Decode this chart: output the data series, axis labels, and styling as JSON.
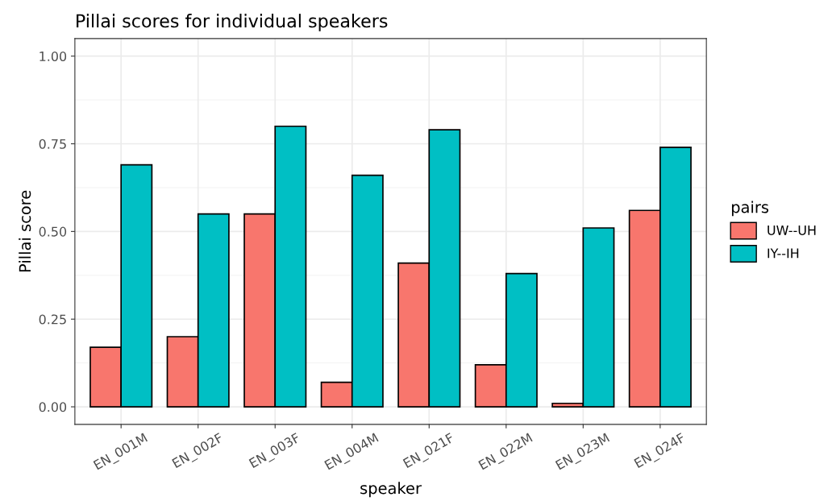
{
  "chart_data": {
    "type": "bar",
    "title": "Pillai scores for individual speakers",
    "xlabel": "speaker",
    "ylabel": "Pillai score",
    "legend_title": "pairs",
    "categories": [
      "EN_001M",
      "EN_002F",
      "EN_003F",
      "EN_004M",
      "EN_021F",
      "EN_022M",
      "EN_023M",
      "EN_024F"
    ],
    "series": [
      {
        "name": "UW--UH",
        "color": "#f8766d",
        "values": [
          0.17,
          0.2,
          0.55,
          0.07,
          0.41,
          0.12,
          0.01,
          0.56
        ]
      },
      {
        "name": "IY--IH",
        "color": "#00bfc4",
        "values": [
          0.69,
          0.55,
          0.8,
          0.66,
          0.79,
          0.38,
          0.51,
          0.74
        ]
      }
    ],
    "ylim": [
      -0.05,
      1.05
    ],
    "yticks": [
      {
        "value": 0,
        "label": "0.00"
      },
      {
        "value": 0.25,
        "label": "0.25"
      },
      {
        "value": 0.5,
        "label": "0.50"
      },
      {
        "value": 0.75,
        "label": "0.75"
      },
      {
        "value": 1,
        "label": "1.00"
      }
    ],
    "grid": true,
    "legend": "right"
  }
}
